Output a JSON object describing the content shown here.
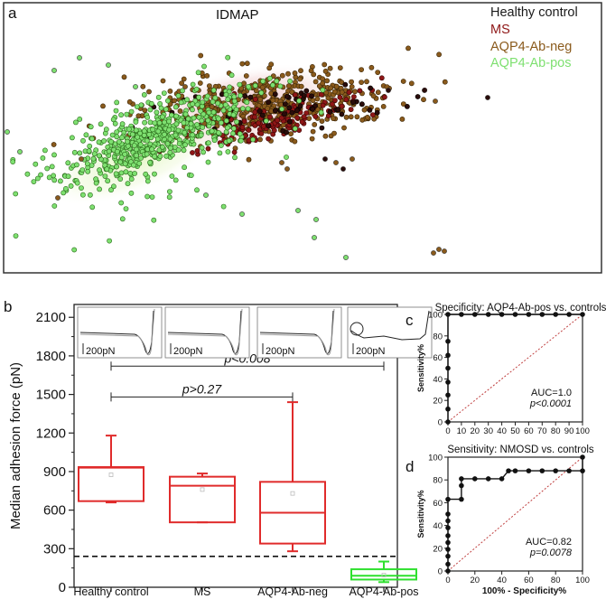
{
  "colors": {
    "healthy": "#2a0c0a",
    "ms": "#8e1616",
    "neg": "#8a5a1c",
    "pos": "#7ee070",
    "box_red": "#e02b2b",
    "box_green": "#2fe02f"
  },
  "panel_a": {
    "label": "a",
    "title": "IDMAP",
    "legend": [
      "Healthy control",
      "MS",
      "AQP4-Ab-neg",
      "AQP4-Ab-pos"
    ]
  },
  "chart_data": [
    {
      "type": "box",
      "panel": "b",
      "ylabel": "Median adhesion force (pN)",
      "ylim": [
        0,
        2200
      ],
      "yticks": [
        "0",
        "300",
        "600",
        "900",
        "1200",
        "1500",
        "1800",
        "2100"
      ],
      "categories": [
        "Healthy control",
        "MS",
        "AQP4-Ab-neg",
        "AQP4-Ab-pos"
      ],
      "boxes": [
        {
          "name": "Healthy control",
          "min": 660,
          "q1": 670,
          "median": 930,
          "q3": 935,
          "max": 1180,
          "mean": 875,
          "color": "#e02b2b"
        },
        {
          "name": "MS",
          "min": 505,
          "q1": 505,
          "median": 790,
          "q3": 860,
          "max": 885,
          "mean": 760,
          "color": "#e02b2b"
        },
        {
          "name": "AQP4-Ab-neg",
          "min": 280,
          "q1": 340,
          "median": 580,
          "q3": 820,
          "max": 1440,
          "mean": 730,
          "color": "#e02b2b"
        },
        {
          "name": "AQP4-Ab-pos",
          "min": 40,
          "q1": 60,
          "median": 90,
          "q3": 140,
          "max": 200,
          "mean": 95,
          "color": "#2fe02f"
        }
      ],
      "threshold": 240,
      "comparisons": [
        {
          "from": "Healthy control",
          "to": "AQP4-Ab-pos",
          "label": "p<0.008",
          "y": 1720
        },
        {
          "from": "Healthy control",
          "to": "AQP4-Ab-neg",
          "label": "p>0.27",
          "y": 1480
        }
      ],
      "scale_bar_label": "200pN"
    },
    {
      "type": "line",
      "panel": "c",
      "title": "Specificity: AQP4-Ab-pos vs. controls",
      "ylabel": "Sensitivity%",
      "xlim": [
        0,
        100
      ],
      "ylim": [
        0,
        100
      ],
      "xticks": [
        "0",
        "10",
        "20",
        "30",
        "40",
        "50",
        "60",
        "70",
        "80",
        "90",
        "100"
      ],
      "yticks": [
        "0",
        "20",
        "40",
        "60",
        "80",
        "100"
      ],
      "series": [
        {
          "x": [
            0,
            0,
            0,
            0,
            0,
            0,
            0,
            0,
            10,
            20,
            30,
            40,
            50,
            60,
            70,
            80,
            90,
            100
          ],
          "y": [
            0,
            12,
            25,
            37,
            50,
            62,
            75,
            100,
            100,
            100,
            100,
            100,
            100,
            100,
            100,
            100,
            100,
            100
          ]
        }
      ],
      "auc": "AUC=1.0",
      "p": "p<0.0001"
    },
    {
      "type": "line",
      "panel": "d",
      "title": "Sensitivity: NMOSD vs. controls",
      "ylabel": "Sensitivity%",
      "xlabel": "100% - Specificity%",
      "xlim": [
        0,
        100
      ],
      "ylim": [
        0,
        100
      ],
      "xticks": [
        "0",
        "20",
        "40",
        "60",
        "80",
        "100"
      ],
      "yticks": [
        "0",
        "20",
        "40",
        "60",
        "80",
        "100"
      ],
      "series": [
        {
          "x": [
            0,
            0,
            0,
            0,
            0,
            0,
            0,
            0,
            0,
            0,
            10,
            10,
            10,
            20,
            30,
            40,
            45,
            50,
            60,
            70,
            80,
            90,
            100,
            100
          ],
          "y": [
            0,
            6,
            13,
            19,
            25,
            31,
            38,
            44,
            50,
            63,
            63,
            75,
            81,
            81,
            81,
            81,
            88,
            88,
            88,
            88,
            88,
            88,
            88,
            100
          ]
        }
      ],
      "auc": "AUC=0.82",
      "p": "p=0.0078"
    }
  ]
}
